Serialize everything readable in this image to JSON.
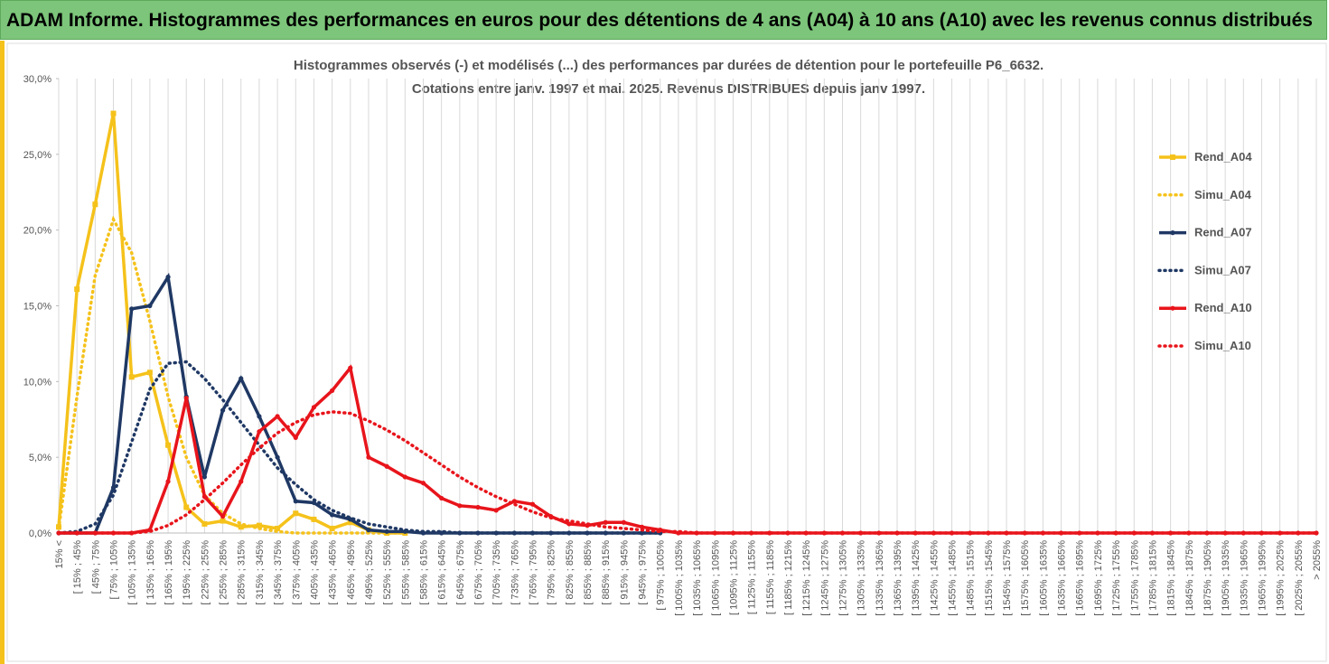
{
  "header": {
    "title": "ADAM Informe. Histogrammes des performances en euros pour des détentions de 4 ans (A04) à 10 ans (A10) avec les revenus connus distribués"
  },
  "chart_data": {
    "type": "line",
    "title": "Histogrammes observés (-) et modélisés (...) des performances par durées de détention pour le portefeuille P6_6632.",
    "subtitle": "Cotations entre janv. 1997 et mai. 2025. Revenus DISTRIBUES depuis janv 1997.",
    "categories": [
      "15% <",
      "[ 15% ; 45%",
      "[ 45% ; 75%",
      "[ 75% ; 105%",
      "[ 105% ; 135%",
      "[ 135% ; 165%",
      "[ 165% ; 195%",
      "[ 195% ; 225%",
      "[ 225% ; 255%",
      "[ 255% ; 285%",
      "[ 285% ; 315%",
      "[ 315% ; 345%",
      "[ 345% ; 375%",
      "[ 375% ; 405%",
      "[ 405% ; 435%",
      "[ 435% ; 465%",
      "[ 465% ; 495%",
      "[ 495% ; 525%",
      "[ 525% ; 555%",
      "[ 555% ; 585%",
      "[ 585% ; 615%",
      "[ 615% ; 645%",
      "[ 645% ; 675%",
      "[ 675% ; 705%",
      "[ 705% ; 735%",
      "[ 735% ; 765%",
      "[ 765% ; 795%",
      "[ 795% ; 825%",
      "[ 825% ; 855%",
      "[ 855% ; 885%",
      "[ 885% ; 915%",
      "[ 915% ; 945%",
      "[ 945% ; 975%",
      "[ 975% ; 1005%",
      "[ 1005% ; 1035%",
      "[ 1035% ; 1065%",
      "[ 1065% ; 1095%",
      "[ 1095% ; 1125%",
      "[ 1125% ; 1155%",
      "[ 1155% ; 1185%",
      "[ 1185% ; 1215%",
      "[ 1215% ; 1245%",
      "[ 1245% ; 1275%",
      "[ 1275% ; 1305%",
      "[ 1305% ; 1335%",
      "[ 1335% ; 1365%",
      "[ 1365% ; 1395%",
      "[ 1395% ; 1425%",
      "[ 1425% ; 1455%",
      "[ 1455% ; 1485%",
      "[ 1485% ; 1515%",
      "[ 1515% ; 1545%",
      "[ 1545% ; 1575%",
      "[ 1575% ; 1605%",
      "[ 1605% ; 1635%",
      "[ 1635% ; 1665%",
      "[ 1665% ; 1695%",
      "[ 1695% ; 1725%",
      "[ 1725% ; 1755%",
      "[ 1755% ; 1785%",
      "[ 1785% ; 1815%",
      "[ 1815% ; 1845%",
      "[ 1845% ; 1875%",
      "[ 1875% ; 1905%",
      "[ 1905% ; 1935%",
      "[ 1935% ; 1965%",
      "[ 1965% ; 1995%",
      "[ 1995% ; 2025%",
      "[ 2025% ; 2055%",
      "> 2055%"
    ],
    "series": [
      {
        "name": "Rend_A04",
        "color": "#f5c21b",
        "dash": "solid",
        "marker": "square",
        "values": [
          0.4,
          16.1,
          21.7,
          27.7,
          10.3,
          10.6,
          5.8,
          1.7,
          0.6,
          0.8,
          0.4,
          0.5,
          0.3,
          1.3,
          0.9,
          0.3,
          0.7,
          0.2,
          0,
          0,
          null,
          null,
          null,
          null,
          null,
          null,
          null,
          null,
          null,
          null,
          null,
          null,
          null,
          null,
          null,
          null,
          null,
          null,
          null,
          null,
          null,
          null,
          null,
          null,
          null,
          null,
          null,
          null,
          null,
          null,
          null,
          null,
          null,
          null,
          null,
          null,
          null,
          null,
          null,
          null,
          null,
          null,
          null,
          null,
          null,
          null,
          null,
          null,
          null,
          null
        ]
      },
      {
        "name": "Simu_A04",
        "color": "#f5c21b",
        "dash": "dotted",
        "marker": null,
        "values": [
          0.3,
          9,
          17,
          20.7,
          18.5,
          14,
          9,
          5,
          2.5,
          1.3,
          0.6,
          0.3,
          0.1,
          0,
          0,
          0,
          0,
          0,
          0,
          0,
          null,
          null,
          null,
          null,
          null,
          null,
          null,
          null,
          null,
          null,
          null,
          null,
          null,
          null,
          null,
          null,
          null,
          null,
          null,
          null,
          null,
          null,
          null,
          null,
          null,
          null,
          null,
          null,
          null,
          null,
          null,
          null,
          null,
          null,
          null,
          null,
          null,
          null,
          null,
          null,
          null,
          null,
          null,
          null,
          null,
          null,
          null,
          null,
          null,
          null
        ]
      },
      {
        "name": "Rend_A07",
        "color": "#1f3864",
        "dash": "solid",
        "marker": "circle",
        "values": [
          0,
          0,
          0,
          3,
          14.8,
          15,
          16.9,
          9,
          3.7,
          8.1,
          10.2,
          7.7,
          5,
          2.1,
          2,
          1.2,
          0.9,
          0.2,
          0.1,
          0.1,
          0,
          0,
          0,
          0,
          0,
          0,
          0,
          0,
          0,
          0,
          0,
          0,
          0,
          0,
          null,
          null,
          null,
          null,
          null,
          null,
          null,
          null,
          null,
          null,
          null,
          null,
          null,
          null,
          null,
          null,
          null,
          null,
          null,
          null,
          null,
          null,
          null,
          null,
          null,
          null,
          null,
          null,
          null,
          null,
          null,
          null,
          null,
          null,
          null,
          null
        ]
      },
      {
        "name": "Simu_A07",
        "color": "#1f3864",
        "dash": "dotted",
        "marker": null,
        "values": [
          0,
          0.1,
          0.6,
          2.5,
          6,
          9.5,
          11.2,
          11.3,
          10.2,
          8.8,
          7.3,
          5.8,
          4.3,
          3.2,
          2.2,
          1.5,
          1,
          0.6,
          0.4,
          0.2,
          0.1,
          0.1,
          0,
          0,
          0,
          0,
          0,
          0,
          0,
          0,
          0,
          0,
          0,
          0,
          null,
          null,
          null,
          null,
          null,
          null,
          null,
          null,
          null,
          null,
          null,
          null,
          null,
          null,
          null,
          null,
          null,
          null,
          null,
          null,
          null,
          null,
          null,
          null,
          null,
          null,
          null,
          null,
          null,
          null,
          null,
          null,
          null,
          null,
          null,
          null
        ]
      },
      {
        "name": "Rend_A10",
        "color": "#e8141b",
        "dash": "solid",
        "marker": "circle",
        "values": [
          0,
          0,
          0,
          0,
          0,
          0.2,
          3.4,
          8.9,
          2.4,
          1.1,
          3.4,
          6.7,
          7.7,
          6.3,
          8.3,
          9.4,
          10.9,
          5,
          4.4,
          3.7,
          3.3,
          2.3,
          1.8,
          1.7,
          1.5,
          2.1,
          1.9,
          1.1,
          0.6,
          0.5,
          0.7,
          0.7,
          0.4,
          0.2,
          0,
          0,
          0,
          0,
          0,
          0,
          0,
          0,
          0,
          0,
          0,
          0,
          0,
          0,
          0,
          0,
          0,
          0,
          0,
          0,
          0,
          0,
          0,
          0,
          0,
          0,
          0,
          0,
          0,
          0,
          0,
          0,
          0,
          0,
          0,
          0
        ]
      },
      {
        "name": "Simu_A10",
        "color": "#e8141b",
        "dash": "dotted",
        "marker": null,
        "values": [
          0,
          0,
          0,
          0,
          0,
          0.1,
          0.5,
          1.2,
          2.2,
          3.3,
          4.5,
          5.6,
          6.6,
          7.3,
          7.8,
          8,
          7.9,
          7.4,
          6.8,
          6.1,
          5.3,
          4.5,
          3.7,
          3,
          2.4,
          1.9,
          1.4,
          1,
          0.8,
          0.6,
          0.4,
          0.3,
          0.2,
          0.1,
          0.1,
          0,
          0,
          0,
          0,
          0,
          0,
          0,
          0,
          0,
          0,
          0,
          0,
          0,
          0,
          0,
          0,
          0,
          0,
          0,
          0,
          0,
          0,
          0,
          0,
          0,
          0,
          0,
          0,
          0,
          0,
          0,
          0,
          0,
          0,
          0
        ]
      }
    ],
    "ylim": [
      0,
      30
    ],
    "yticks": [
      {
        "value": 0,
        "label": "0,0%"
      },
      {
        "value": 5,
        "label": "5,0%"
      },
      {
        "value": 10,
        "label": "10,0%"
      },
      {
        "value": 15,
        "label": "15,0%"
      },
      {
        "value": 20,
        "label": "20,0%"
      },
      {
        "value": 25,
        "label": "25,0%"
      },
      {
        "value": 30,
        "label": "30,0%"
      }
    ],
    "grid": "vertical",
    "legend": "right"
  }
}
